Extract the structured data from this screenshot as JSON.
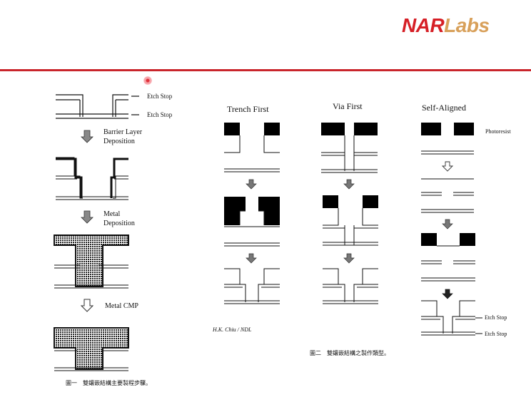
{
  "logo": {
    "nar": "NAR",
    "labs": "Labs"
  },
  "left_flow": {
    "etch_stop_1": "Etch Stop",
    "etch_stop_2": "Etch Stop",
    "step1_line1": "Barrier Layer",
    "step1_line2": "Deposition",
    "step2_line1": "Metal",
    "step2_line2": "Deposition",
    "step3": "Metal CMP",
    "caption": "圖一　雙鑲嵌結構主要製程步驟。"
  },
  "methods": {
    "trench_first": "Trench First",
    "via_first": "Via First",
    "self_aligned": "Self-Aligned",
    "photoresist": "Photoresist",
    "etch_stop_1": "Etch Stop",
    "etch_stop_2": "Etch Stop",
    "credit": "H.K. Chiu / NDL",
    "caption": "圖二　雙鑲嵌結構之製作類型。"
  },
  "colors": {
    "accent_red": "#c9252b",
    "logo_red": "#d61f26",
    "logo_gold": "#d8a05a"
  }
}
